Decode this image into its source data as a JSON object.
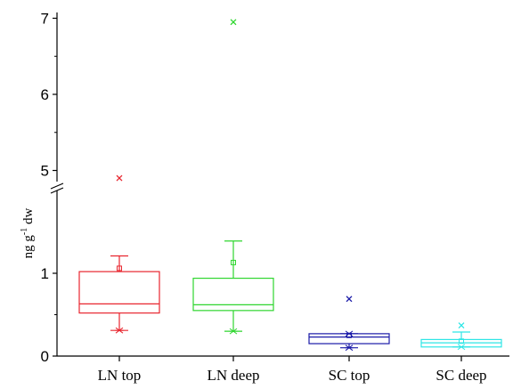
{
  "chart_data": {
    "type": "box",
    "ylabel": "ng g",
    "ylabel_sup": "-1",
    "ylabel_suffix": " dw",
    "axis_break": true,
    "ylim_lower": [
      0,
      1.4
    ],
    "ylim_upper": [
      4.6,
      7.0
    ],
    "yticks_lower": [
      "0",
      "1"
    ],
    "yticks_upper": [
      "5",
      "6",
      "7"
    ],
    "categories": [
      "LN top",
      "LN deep",
      "SC top",
      "SC deep"
    ],
    "series": [
      {
        "category": "LN top",
        "color": "#e8262f",
        "q1": 0.52,
        "median": 0.63,
        "q3": 1.02,
        "mean": 1.06,
        "whisker_low": 0.31,
        "whisker_high": 1.21,
        "min": 0.31,
        "max": 1.21,
        "outliers": [
          4.9
        ]
      },
      {
        "category": "LN deep",
        "color": "#2fd62f",
        "q1": 0.55,
        "median": 0.62,
        "q3": 0.94,
        "mean": 1.13,
        "whisker_low": 0.3,
        "whisker_high": 1.39,
        "min": 0.3,
        "max": 1.39,
        "outliers": [
          6.95
        ]
      },
      {
        "category": "SC top",
        "color": "#1a1aa8",
        "q1": 0.15,
        "median": 0.23,
        "q3": 0.27,
        "mean": 0.25,
        "whisker_low": 0.1,
        "whisker_high": 0.27,
        "min": 0.1,
        "max": 0.27,
        "outliers": [
          0.69
        ]
      },
      {
        "category": "SC deep",
        "color": "#2ee6e6",
        "q1": 0.11,
        "median": 0.16,
        "q3": 0.2,
        "mean": 0.18,
        "whisker_low": 0.11,
        "whisker_high": 0.29,
        "min": 0.11,
        "max": 0.29,
        "outliers": [
          0.37
        ]
      }
    ]
  }
}
